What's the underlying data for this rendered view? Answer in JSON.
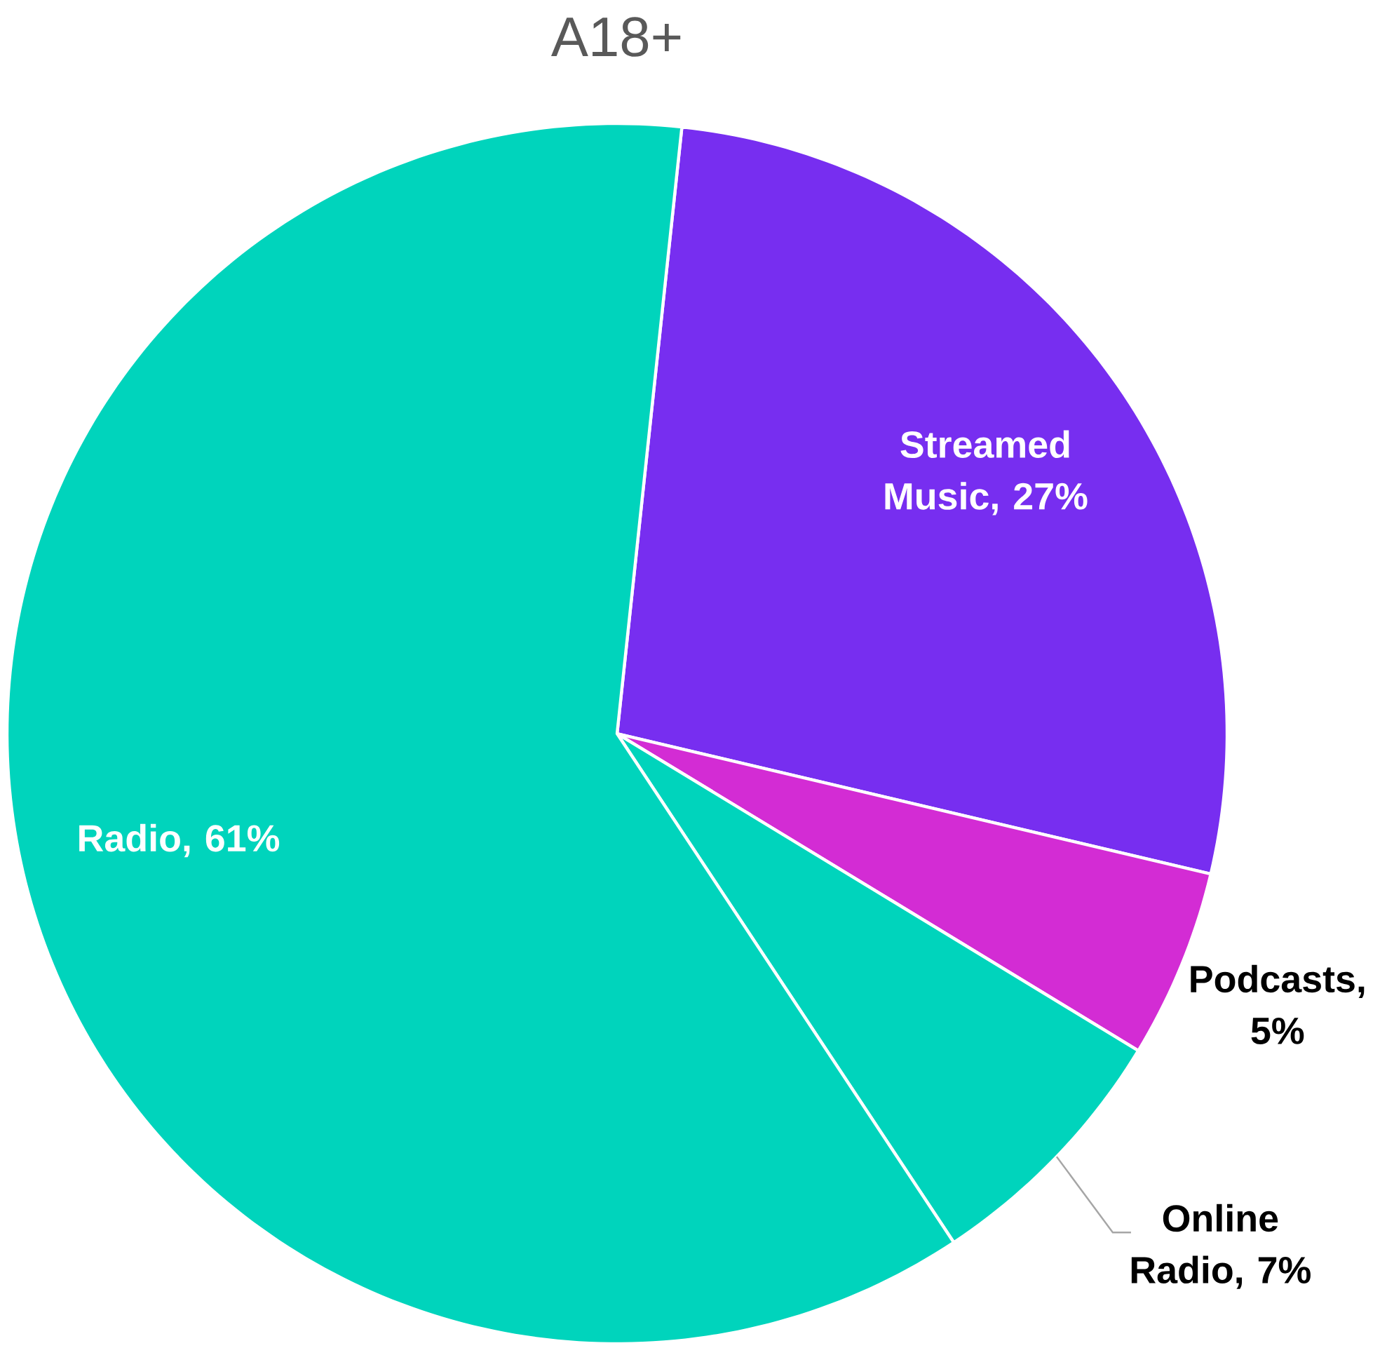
{
  "chart_data": {
    "type": "pie",
    "title": "A18+",
    "categories": [
      "Streamed Music",
      "Podcasts",
      "Online Radio",
      "Radio"
    ],
    "values": [
      27,
      5,
      7,
      61
    ],
    "value_labels": [
      ", 27%",
      ", 5%",
      ", 7%",
      ", 61%"
    ],
    "colors": [
      "#772ef0",
      "#d32cd4",
      "#00d4bc",
      "#00d4bc"
    ]
  }
}
